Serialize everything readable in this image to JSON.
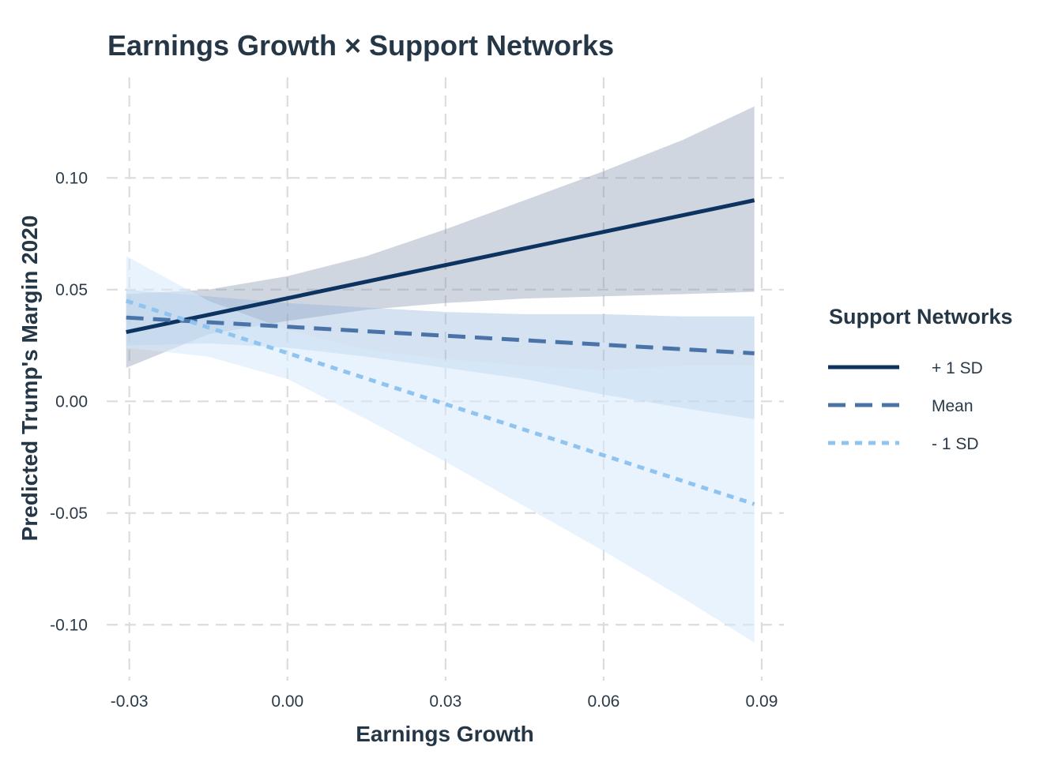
{
  "chart_data": {
    "type": "line",
    "title": "Earnings Growth × Support Networks",
    "xlabel": "Earnings Growth",
    "ylabel": "Predicted Trump's Margin 2020",
    "xlim": [
      -0.0343,
      0.0942
    ],
    "ylim": [
      -0.125,
      0.145
    ],
    "x_ticks": [
      -0.03,
      0.0,
      0.03,
      0.06,
      0.09
    ],
    "x_tick_labels": [
      "-0.03",
      "0.00",
      "0.03",
      "0.06",
      "0.09"
    ],
    "y_ticks": [
      -0.1,
      -0.05,
      0.0,
      0.05,
      0.1
    ],
    "y_tick_labels": [
      "-0.10",
      "-0.05",
      "0.00",
      "0.05",
      "0.10"
    ],
    "grid": true,
    "legend_position": "right",
    "legend_title": "Support Networks",
    "series": [
      {
        "name": "+ 1 SD",
        "color": "#0d3461",
        "dash": "solid",
        "ribbon_color": "#8392ad",
        "ribbon_opacity": 0.38,
        "x": [
          -0.0306,
          0.0886
        ],
        "y": [
          0.031,
          0.09
        ],
        "ribbon_x": [
          -0.0306,
          -0.015,
          0.0,
          0.015,
          0.03,
          0.045,
          0.06,
          0.075,
          0.0886
        ],
        "ribbon_lower": [
          0.015,
          0.03,
          0.036,
          0.041,
          0.044,
          0.046,
          0.047,
          0.048,
          0.049
        ],
        "ribbon_upper": [
          0.048,
          0.05,
          0.056,
          0.065,
          0.077,
          0.09,
          0.103,
          0.117,
          0.132
        ]
      },
      {
        "name": "Mean",
        "color": "#4a73a8",
        "dash": "dashed",
        "ribbon_color": "#8fb3da",
        "ribbon_opacity": 0.38,
        "x": [
          -0.0306,
          0.0886
        ],
        "y": [
          0.0375,
          0.0215
        ],
        "ribbon_x": [
          -0.0306,
          -0.015,
          0.0,
          0.015,
          0.03,
          0.045,
          0.06,
          0.075,
          0.0886
        ],
        "ribbon_lower": [
          0.025,
          0.026,
          0.024,
          0.02,
          0.015,
          0.01,
          0.003,
          -0.003,
          -0.008
        ],
        "ribbon_upper": [
          0.05,
          0.047,
          0.044,
          0.042,
          0.04,
          0.039,
          0.039,
          0.038,
          0.038
        ]
      },
      {
        "name": "- 1 SD",
        "color": "#8ec4ef",
        "dash": "dotted",
        "ribbon_color": "#d6e9fb",
        "ribbon_opacity": 0.55,
        "x": [
          -0.0306,
          0.0886
        ],
        "y": [
          0.045,
          -0.046
        ],
        "ribbon_x": [
          -0.0306,
          -0.015,
          0.0,
          0.015,
          0.03,
          0.045,
          0.06,
          0.075,
          0.0886
        ],
        "ribbon_lower": [
          0.024,
          0.02,
          0.01,
          -0.008,
          -0.027,
          -0.047,
          -0.067,
          -0.088,
          -0.108
        ],
        "ribbon_upper": [
          0.065,
          0.045,
          0.032,
          0.023,
          0.019,
          0.016,
          0.014,
          0.016,
          0.016
        ]
      }
    ]
  }
}
